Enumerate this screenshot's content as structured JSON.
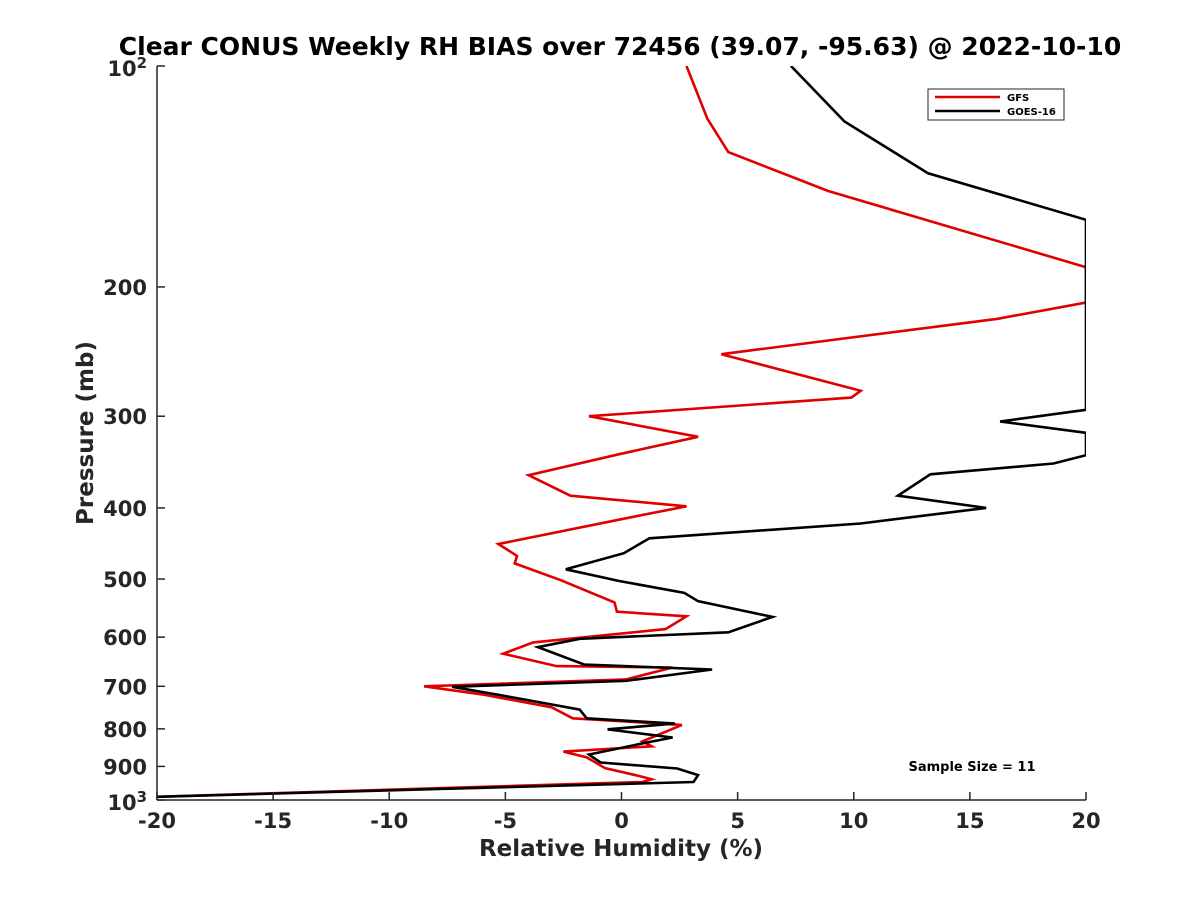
{
  "chart_data": {
    "type": "line",
    "title": "Clear CONUS Weekly RH BIAS over 72456 (39.07, -95.63) @ 2022-10-10",
    "xlabel": "Relative Humidity (%)",
    "ylabel": "Pressure (mb)",
    "xlim": [
      -20,
      20
    ],
    "ylim": [
      100,
      1000
    ],
    "yscale": "log",
    "y_reversed": true,
    "xticks": [
      -20,
      -15,
      -10,
      -5,
      0,
      5,
      10,
      15,
      20
    ],
    "xtick_labels": [
      "-20",
      "-15",
      "-10",
      "-5",
      "0",
      "5",
      "10",
      "15",
      "20"
    ],
    "yticks": [
      200,
      300,
      400,
      500,
      600,
      700,
      800,
      900
    ],
    "ytick_labels": [
      "200",
      "300",
      "400",
      "500",
      "600",
      "700",
      "800",
      "900"
    ],
    "ytick_top": {
      "base": "10",
      "exp": "2"
    },
    "ytick_bottom": {
      "base": "10",
      "exp": "3"
    },
    "grid": false,
    "legend_position": "top-right",
    "annotation": "Sample Size = 11",
    "series": [
      {
        "name": "GFS",
        "color": "#e00000",
        "x": [
          2.8,
          3.7,
          4.6,
          8.9,
          20,
          20,
          16.2,
          4.3,
          10.3,
          9.9,
          -1.4,
          3.3,
          -0.1,
          -4.0,
          -2.2,
          2.8,
          0.4,
          -5.3,
          -4.5,
          -4.6,
          -2.6,
          -0.3,
          -0.2,
          2.8,
          1.9,
          -3.8,
          -5.1,
          -2.8,
          2.2,
          0.2,
          -8.5,
          -6.0,
          -3.0,
          -2.1,
          2.6,
          0.9,
          1.3,
          -2.5,
          -1.5,
          -0.7,
          0.8,
          1.3,
          0.9,
          -20.0
        ],
        "y": [
          100,
          118,
          131,
          148,
          188,
          210,
          221,
          247,
          277,
          283,
          300,
          320,
          338,
          361,
          385,
          398,
          412,
          448,
          465,
          476,
          502,
          538,
          554,
          562,
          585,
          610,
          632,
          657,
          660,
          685,
          700,
          718,
          748,
          774,
          790,
          832,
          845,
          859,
          875,
          905,
          928,
          937,
          945,
          990
        ]
      },
      {
        "name": "GOES-16",
        "color": "#000000",
        "x": [
          7.3,
          9.6,
          13.2,
          20,
          20,
          16.3,
          20,
          20,
          18.6,
          13.3,
          11.9,
          15.7,
          10.3,
          1.2,
          0.1,
          -2.4,
          -0.1,
          2.7,
          3.3,
          6.5,
          4.6,
          -1.8,
          -3.6,
          -1.6,
          3.9,
          0.2,
          -7.3,
          -5.4,
          -1.8,
          -1.5,
          2.3,
          -0.6,
          2.2,
          1.1,
          -1.4,
          -1.2,
          -0.9,
          2.4,
          3.3,
          3.1,
          -20.0
        ],
        "y": [
          100,
          119,
          140,
          162,
          294,
          305,
          316,
          339,
          348,
          360,
          385,
          400,
          420,
          440,
          461,
          485,
          503,
          522,
          536,
          563,
          591,
          603,
          619,
          654,
          664,
          688,
          701,
          718,
          753,
          774,
          787,
          801,
          822,
          835,
          867,
          876,
          889,
          906,
          925,
          945,
          990
        ]
      }
    ]
  }
}
